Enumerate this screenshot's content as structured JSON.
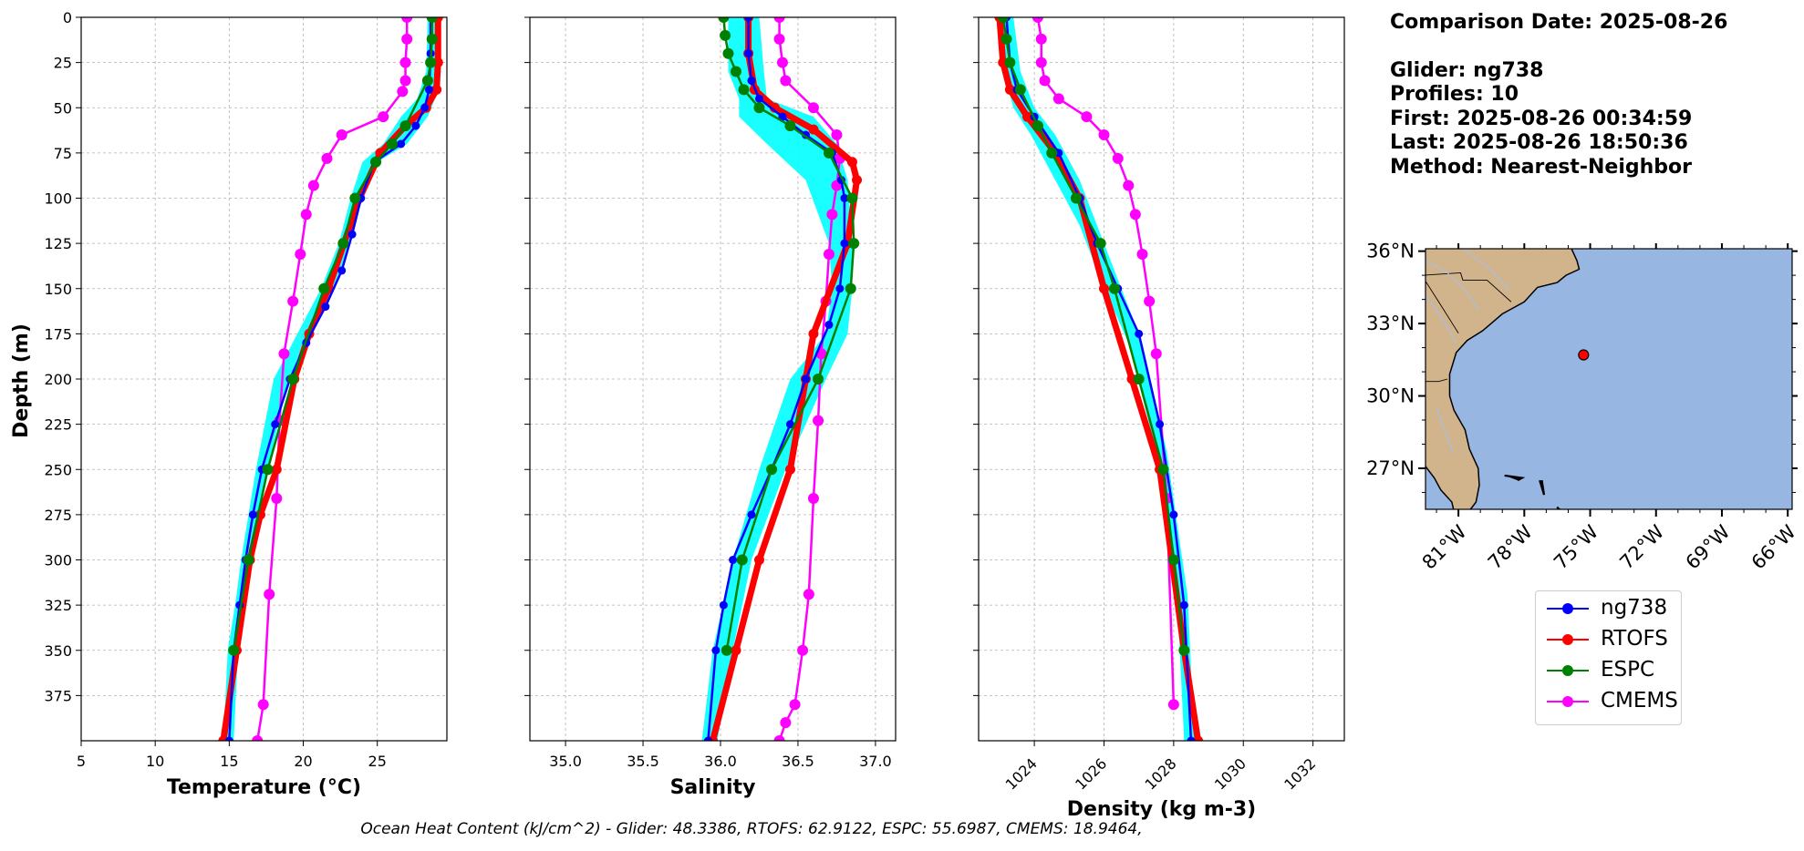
{
  "info": {
    "comparison_date": "Comparison Date: 2025-08-26",
    "glider": "Glider: ng738",
    "profiles": "Profiles: 10",
    "first": "First: 2025-08-26 00:34:59",
    "last": "Last: 2025-08-26 18:50:36",
    "method": "Method: Nearest-Neighbor"
  },
  "footer": "Ocean Heat Content (kJ/cm^2) - Glider: 48.3386,  RTOFS: 62.9122,  ESPC: 55.6987,  CMEMS: 18.9464,",
  "colors": {
    "glider": "#0000ff",
    "glider_band": "#00ffff",
    "rtofs": "#ff0000",
    "espc": "#008000",
    "cmems": "#ff00ff",
    "land": "#d2b48c",
    "ocean": "#98b6e2"
  },
  "legend": [
    {
      "label": "ng738",
      "color": "#0000ff"
    },
    {
      "label": "RTOFS",
      "color": "#ff0000"
    },
    {
      "label": "ESPC",
      "color": "#008000"
    },
    {
      "label": "CMEMS",
      "color": "#ff00ff"
    }
  ],
  "chart_data": [
    {
      "type": "line",
      "xlabel": "Temperature (°C)",
      "ylabel": "Depth (m)",
      "xlim": [
        5,
        29.7
      ],
      "ylim": [
        400,
        0
      ],
      "xticks": [
        5,
        10,
        15,
        20,
        25
      ],
      "yticks": [
        0,
        25,
        50,
        75,
        100,
        125,
        150,
        175,
        200,
        225,
        250,
        275,
        300,
        325,
        350,
        375
      ],
      "grid": true,
      "series": [
        {
          "name": "ng738",
          "x": [
            28.6,
            28.6,
            28.5,
            28.2,
            27.6,
            26.6,
            24.8,
            23.9,
            23.3,
            22.6,
            21.5,
            20.2,
            19.1,
            18.1,
            17.2,
            16.6,
            16.1,
            15.7,
            15.3,
            15.0
          ],
          "y": [
            0,
            20,
            40,
            50,
            60,
            70,
            80,
            100,
            120,
            140,
            160,
            180,
            200,
            225,
            250,
            275,
            300,
            325,
            350,
            400
          ]
        },
        {
          "name": "RTOFS",
          "x": [
            29.1,
            29.1,
            29.0,
            28.3,
            26.9,
            25.2,
            23.8,
            21.7,
            20.4,
            19.4,
            18.2,
            17.1,
            16.4,
            15.5,
            14.6
          ],
          "y": [
            0,
            25,
            40,
            50,
            60,
            75,
            100,
            150,
            175,
            200,
            250,
            275,
            300,
            350,
            400
          ]
        },
        {
          "name": "ESPC",
          "x": [
            28.7,
            28.7,
            28.6,
            28.4,
            26.9,
            26.0,
            24.9,
            23.5,
            22.7,
            21.4,
            19.3,
            17.6,
            16.3,
            15.3
          ],
          "y": [
            0,
            12,
            25,
            35,
            60,
            70,
            80,
            100,
            125,
            150,
            200,
            250,
            300,
            350
          ]
        },
        {
          "name": "CMEMS",
          "x": [
            27.0,
            27.0,
            26.9,
            26.9,
            26.7,
            25.4,
            22.6,
            21.6,
            20.7,
            20.2,
            19.8,
            19.3,
            18.7,
            18.4,
            18.2,
            17.7,
            17.3,
            16.9
          ],
          "y": [
            0,
            12,
            25,
            35,
            41,
            55,
            65,
            78,
            93,
            109,
            131,
            157,
            186,
            223,
            266,
            319,
            380,
            400
          ]
        }
      ],
      "band": {
        "name": "ng738 profiles",
        "xmin": [
          28.4,
          28.3,
          27.7,
          26.6,
          25.4,
          24.0,
          23.2,
          22.4,
          21.2,
          19.6,
          18.0,
          16.8,
          15.8,
          15.4,
          14.9,
          14.6
        ],
        "xmax": [
          28.9,
          29.0,
          28.9,
          28.4,
          27.0,
          25.0,
          24.0,
          23.2,
          22.0,
          20.6,
          19.0,
          17.6,
          16.6,
          16.0,
          15.6,
          15.3
        ],
        "y": [
          0,
          30,
          45,
          55,
          70,
          80,
          100,
          125,
          150,
          175,
          200,
          250,
          300,
          325,
          350,
          400
        ]
      }
    },
    {
      "type": "line",
      "xlabel": "Salinity",
      "xlim": [
        34.77,
        37.13
      ],
      "ylim": [
        400,
        0
      ],
      "xticks": [
        35.0,
        35.5,
        36.0,
        36.5,
        37.0
      ],
      "yticks": [
        0,
        25,
        50,
        75,
        100,
        125,
        150,
        175,
        200,
        225,
        250,
        275,
        300,
        325,
        350,
        375
      ],
      "grid": true,
      "series": [
        {
          "name": "ng738",
          "x": [
            36.18,
            36.18,
            36.2,
            36.25,
            36.4,
            36.55,
            36.72,
            36.78,
            36.8,
            36.8,
            36.77,
            36.7,
            36.55,
            36.45,
            36.33,
            36.2,
            36.08,
            36.02,
            35.97,
            35.92
          ],
          "y": [
            0,
            20,
            35,
            45,
            55,
            65,
            75,
            90,
            100,
            125,
            150,
            170,
            200,
            225,
            250,
            275,
            300,
            325,
            350,
            400
          ]
        },
        {
          "name": "RTOFS",
          "x": [
            36.18,
            36.18,
            36.22,
            36.35,
            36.6,
            36.85,
            36.88,
            36.82,
            36.6,
            36.55,
            36.45,
            36.25,
            36.1,
            35.95
          ],
          "y": [
            0,
            20,
            40,
            50,
            62,
            80,
            90,
            125,
            175,
            200,
            250,
            300,
            350,
            400
          ]
        },
        {
          "name": "ESPC",
          "x": [
            36.02,
            36.03,
            36.05,
            36.1,
            36.15,
            36.25,
            36.45,
            36.7,
            36.85,
            36.86,
            36.84,
            36.63,
            36.33,
            36.14,
            36.04
          ],
          "y": [
            0,
            10,
            20,
            30,
            40,
            50,
            60,
            75,
            100,
            125,
            150,
            200,
            250,
            300,
            350
          ]
        },
        {
          "name": "CMEMS",
          "x": [
            36.38,
            36.38,
            36.4,
            36.42,
            36.6,
            36.75,
            36.77,
            36.75,
            36.72,
            36.7,
            36.68,
            36.65,
            36.63,
            36.6,
            36.57,
            36.53,
            36.48,
            36.42,
            36.38
          ],
          "y": [
            0,
            12,
            25,
            35,
            50,
            65,
            78,
            93,
            109,
            131,
            157,
            186,
            223,
            266,
            319,
            350,
            380,
            390,
            400
          ]
        }
      ],
      "band": {
        "name": "ng738 profiles",
        "xmin": [
          36.05,
          36.05,
          36.12,
          36.12,
          36.3,
          36.55,
          36.7,
          36.72,
          36.68,
          36.45,
          36.25,
          36.08,
          35.95,
          35.88
        ],
        "xmax": [
          36.25,
          36.28,
          36.3,
          36.6,
          36.75,
          36.82,
          36.85,
          36.85,
          36.82,
          36.68,
          36.42,
          36.2,
          36.08,
          35.98
        ],
        "y": [
          0,
          30,
          45,
          55,
          70,
          90,
          125,
          150,
          175,
          200,
          250,
          300,
          350,
          400
        ]
      }
    },
    {
      "type": "line",
      "xlabel": "Density (kg m-3)",
      "xlim": [
        1022.4,
        1032.9
      ],
      "ylim": [
        400,
        0
      ],
      "xticks": [
        1024,
        1026,
        1028,
        1030,
        1032
      ],
      "yticks": [
        0,
        25,
        50,
        75,
        100,
        125,
        150,
        175,
        200,
        225,
        250,
        275,
        300,
        325,
        350,
        375
      ],
      "grid": true,
      "series": [
        {
          "name": "ng738",
          "x": [
            1023.2,
            1023.3,
            1023.5,
            1024.0,
            1024.7,
            1025.3,
            1025.8,
            1026.4,
            1027.0,
            1027.6,
            1028.0,
            1028.3,
            1028.5
          ],
          "y": [
            0,
            25,
            40,
            55,
            75,
            100,
            125,
            150,
            175,
            225,
            275,
            325,
            400
          ]
        },
        {
          "name": "RTOFS",
          "x": [
            1023.0,
            1023.1,
            1023.3,
            1023.8,
            1024.6,
            1025.3,
            1026.0,
            1026.8,
            1027.6,
            1028.3,
            1028.7
          ],
          "y": [
            0,
            25,
            40,
            55,
            75,
            100,
            150,
            200,
            250,
            350,
            400
          ]
        },
        {
          "name": "ESPC",
          "x": [
            1023.1,
            1023.2,
            1023.3,
            1023.6,
            1024.1,
            1024.5,
            1025.2,
            1025.9,
            1026.3,
            1027.0,
            1027.7,
            1028.0,
            1028.3
          ],
          "y": [
            0,
            12,
            25,
            40,
            60,
            75,
            100,
            125,
            150,
            200,
            250,
            300,
            350
          ]
        },
        {
          "name": "CMEMS",
          "x": [
            1024.1,
            1024.2,
            1024.2,
            1024.3,
            1024.7,
            1025.5,
            1026.0,
            1026.4,
            1026.7,
            1026.9,
            1027.1,
            1027.3,
            1027.5,
            1027.8,
            1028.0
          ],
          "y": [
            0,
            12,
            25,
            35,
            45,
            55,
            65,
            78,
            93,
            109,
            131,
            157,
            186,
            266,
            380
          ]
        }
      ],
      "band": {
        "name": "ng738 profiles",
        "xmin": [
          1023.0,
          1023.1,
          1023.4,
          1023.9,
          1024.6,
          1025.3,
          1025.9,
          1026.7,
          1027.5,
          1028.1,
          1028.3
        ],
        "xmax": [
          1023.4,
          1023.6,
          1024.0,
          1024.6,
          1025.3,
          1025.8,
          1026.4,
          1027.1,
          1027.8,
          1028.4,
          1028.6
        ],
        "y": [
          0,
          30,
          50,
          65,
          90,
          115,
          145,
          180,
          240,
          320,
          400
        ]
      }
    },
    {
      "type": "map",
      "lon_range": [
        -82.5,
        -65.8
      ],
      "lat_range": [
        25.3,
        36.1
      ],
      "xticks": [
        "81°W",
        "78°W",
        "75°W",
        "72°W",
        "69°W",
        "66°W"
      ],
      "xtick_values": [
        -81,
        -78,
        -75,
        -72,
        -69,
        -66
      ],
      "yticks": [
        "36°N",
        "33°N",
        "30°N",
        "27°N"
      ],
      "ytick_values": [
        36,
        33,
        30,
        27
      ],
      "marker": {
        "lon": -75.3,
        "lat": 31.7
      }
    }
  ]
}
